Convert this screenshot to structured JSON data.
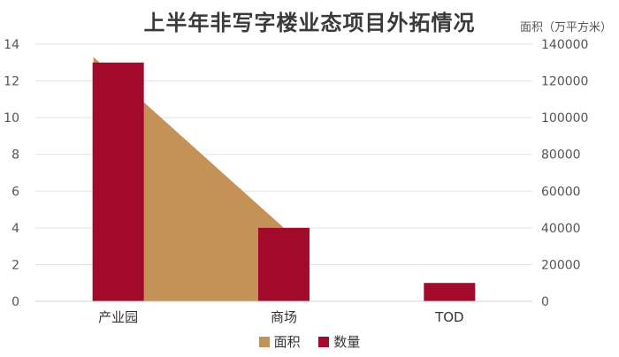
{
  "chart_data": {
    "type": "bar",
    "title": "上半年非写字楼业态项目外拓情况",
    "right_axis_label": "面积（万平方米）",
    "categories": [
      "产业园",
      "商场",
      "TOD"
    ],
    "series": [
      {
        "name": "面积",
        "type": "area",
        "axis": "right",
        "color": "#C49156",
        "values": [
          133000,
          40000,
          0
        ]
      },
      {
        "name": "数量",
        "type": "bar",
        "axis": "left",
        "color": "#A10A2A",
        "values": [
          13,
          4,
          1
        ]
      }
    ],
    "left_axis": {
      "min": 0,
      "max": 14,
      "ticks": [
        "0",
        "2",
        "4",
        "6",
        "8",
        "10",
        "12",
        "14"
      ]
    },
    "right_axis": {
      "min": 0,
      "max": 140000,
      "ticks": [
        "0",
        "20000",
        "40000",
        "60000",
        "80000",
        "100000",
        "120000",
        "140000"
      ]
    },
    "grid": true,
    "legend_position": "bottom"
  }
}
